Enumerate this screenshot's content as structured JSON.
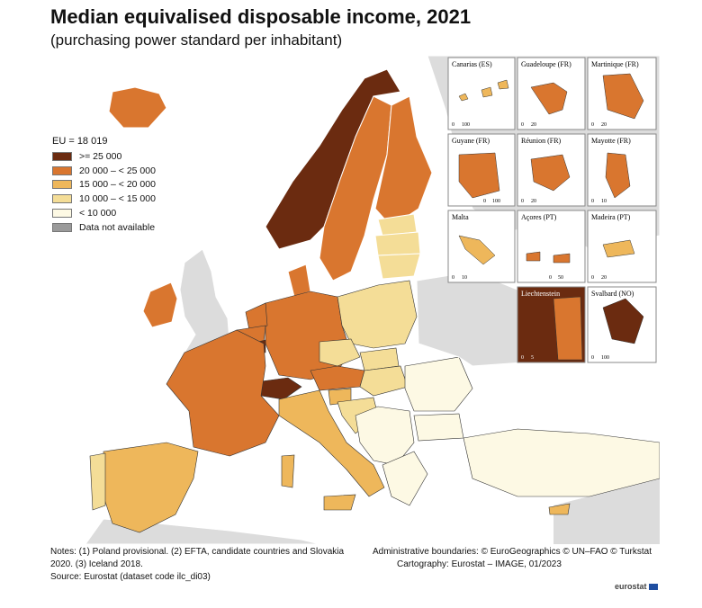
{
  "title": "Median equivalised disposable income, 2021",
  "subtitle": "(purchasing power standard per inhabitant)",
  "legend": {
    "eu_value": "EU = 18 019",
    "classes": [
      {
        "label": ">= 25 000",
        "color": "#6b2b10"
      },
      {
        "label": "20 000 – < 25 000",
        "color": "#d9762f"
      },
      {
        "label": "15 000 – < 20 000",
        "color": "#eeb75b"
      },
      {
        "label": "10 000 – < 15 000",
        "color": "#f4dd97"
      },
      {
        "label": "< 10 000",
        "color": "#fdf9e4"
      },
      {
        "label": "Data not available",
        "color": "#9a9a9a"
      }
    ]
  },
  "colors": {
    "sea": "#ffffff",
    "non_eu_land": "#dcdcdc"
  },
  "insets": [
    {
      "label": "Canarias (ES)",
      "scale": [
        "0",
        "100"
      ]
    },
    {
      "label": "Guadeloupe (FR)",
      "scale": [
        "0",
        "20"
      ]
    },
    {
      "label": "Martinique (FR)",
      "scale": [
        "0",
        "20"
      ]
    },
    {
      "label": "Guyane (FR)",
      "scale": [
        "0",
        "100"
      ]
    },
    {
      "label": "Réunion (FR)",
      "scale": [
        "0",
        "20"
      ]
    },
    {
      "label": "Mayotte (FR)",
      "scale": [
        "0",
        "10"
      ]
    },
    {
      "label": "Malta",
      "scale": [
        "0",
        "10"
      ]
    },
    {
      "label": "Açores (PT)",
      "scale": [
        "0",
        "50"
      ]
    },
    {
      "label": "Madeira (PT)",
      "scale": [
        "0",
        "20"
      ]
    },
    {
      "label": "Liechtenstein",
      "scale": [
        "0",
        "5"
      ]
    },
    {
      "label": "Svalbard (NO)",
      "scale": [
        "0",
        "100"
      ]
    }
  ],
  "notes": {
    "line1": "Notes: (1) Poland provisional. (2) EFTA, candidate countries and Slovakia 2020. (3) Iceland 2018.",
    "source": "Source: Eurostat (dataset code ilc_di03)"
  },
  "credits": {
    "boundaries": "Administrative boundaries: © EuroGeographics © UN–FAO © Turkstat",
    "cartography": "Cartography: Eurostat – IMAGE, 01/2023"
  },
  "logo": "eurostat"
}
